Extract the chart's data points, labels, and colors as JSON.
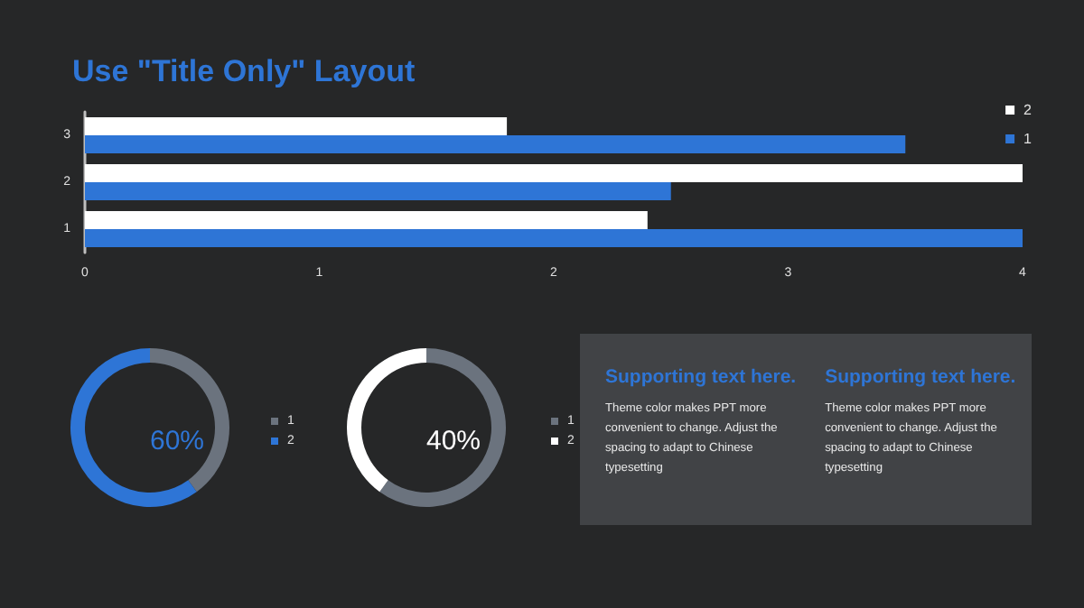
{
  "chart_data": [
    {
      "type": "bar",
      "title": "Use \"Title Only\" Layout",
      "orientation": "horizontal",
      "categories": [
        "3",
        "2",
        "1"
      ],
      "series": [
        {
          "name": "2",
          "color": "#ffffff",
          "values": [
            1.8,
            4.0,
            2.4
          ]
        },
        {
          "name": "1",
          "color": "#2e75d6",
          "values": [
            3.5,
            2.5,
            4.0
          ]
        }
      ],
      "xlim": [
        0,
        4
      ],
      "xticks": [
        0,
        1,
        2,
        3,
        4
      ],
      "legend": "top right"
    },
    {
      "type": "donut",
      "categories": [
        "1",
        "2"
      ],
      "values": [
        40,
        60
      ],
      "colors": [
        "#6b737e",
        "#2e75d6"
      ],
      "annotations": [
        "60%"
      ],
      "legend": "right"
    },
    {
      "type": "donut",
      "categories": [
        "1",
        "2"
      ],
      "values": [
        60,
        40
      ],
      "colors": [
        "#6b737e",
        "#ffffff"
      ],
      "annotations": [
        "40%"
      ],
      "legend": "right"
    },
    {
      "type": "other",
      "annotations": [
        "Supporting text here.",
        "Theme color makes PPT more convenient to change. Adjust the spacing to adapt to Chinese typesetting",
        "Supporting text here.",
        "Theme color makes PPT more convenient to change. Adjust the spacing to adapt to Chinese typesetting"
      ]
    }
  ]
}
